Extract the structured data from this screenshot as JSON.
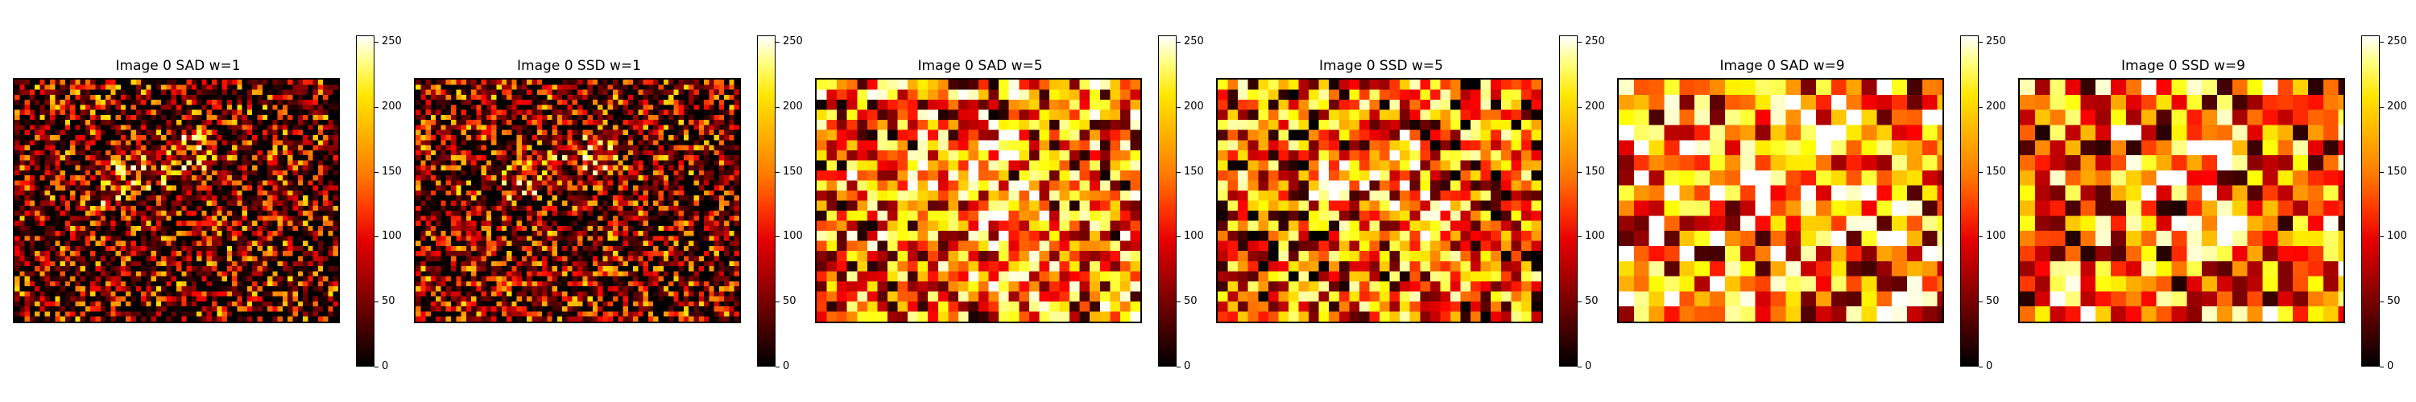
{
  "chart_data": [
    {
      "type": "heatmap",
      "title": "Image 0 SAD w=1",
      "colormap": "hot",
      "colorbar": {
        "min": 0,
        "max": 255,
        "ticks": [
          "0",
          "50",
          "100",
          "150",
          "200",
          "250"
        ]
      },
      "axes_visible": false
    },
    {
      "type": "heatmap",
      "title": "Image 0 SSD w=1",
      "colormap": "hot",
      "colorbar": {
        "min": 0,
        "max": 255,
        "ticks": [
          "0",
          "50",
          "100",
          "150",
          "200",
          "250"
        ]
      },
      "axes_visible": false
    },
    {
      "type": "heatmap",
      "title": "Image 0 SAD w=5",
      "colormap": "hot",
      "colorbar": {
        "min": 0,
        "max": 255,
        "ticks": [
          "0",
          "50",
          "100",
          "150",
          "200",
          "250"
        ]
      },
      "axes_visible": false
    },
    {
      "type": "heatmap",
      "title": "Image 0 SSD w=5",
      "colormap": "hot",
      "colorbar": {
        "min": 0,
        "max": 255,
        "ticks": [
          "0",
          "50",
          "100",
          "150",
          "200",
          "250"
        ]
      },
      "axes_visible": false
    },
    {
      "type": "heatmap",
      "title": "Image 0 SAD w=9",
      "colormap": "hot",
      "colorbar": {
        "min": 0,
        "max": 255,
        "ticks": [
          "0",
          "50",
          "100",
          "150",
          "200",
          "250"
        ]
      },
      "axes_visible": false
    },
    {
      "type": "heatmap",
      "title": "Image 0 SSD w=9",
      "colormap": "hot",
      "colorbar": {
        "min": 0,
        "max": 255,
        "ticks": [
          "0",
          "50",
          "100",
          "150",
          "200",
          "250"
        ]
      },
      "axes_visible": false
    }
  ]
}
